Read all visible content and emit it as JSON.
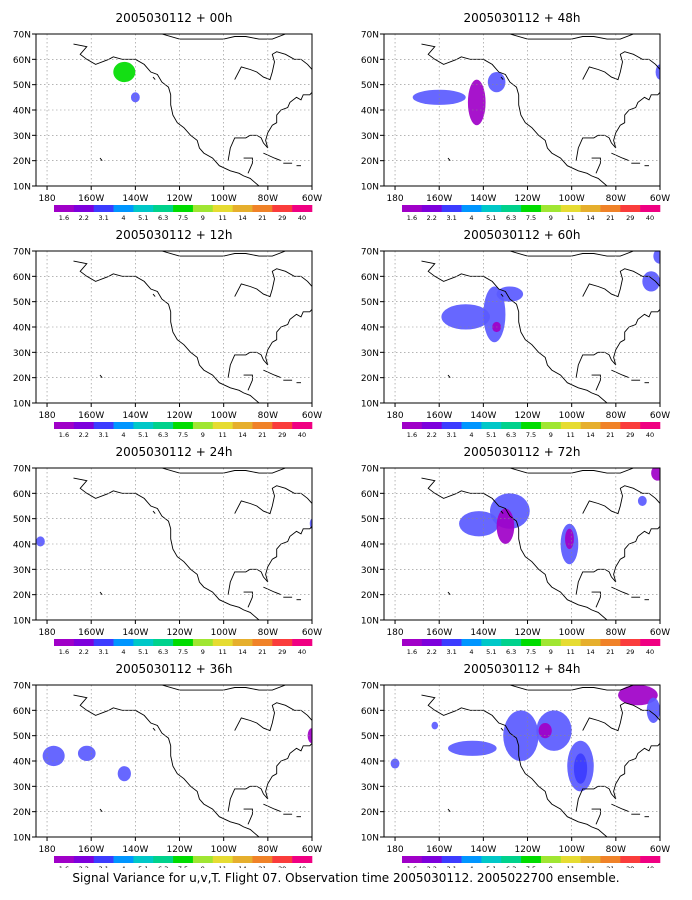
{
  "caption": "Signal Variance for u,v,T. Flight 07. Observation time 2005030112. 2005022700 ensemble.",
  "chart_data": [
    {
      "type": "heatmap",
      "title": "2005030112 + 00h",
      "y_ticks": [
        "10N",
        "20N",
        "30N",
        "40N",
        "50N",
        "60N",
        "70N"
      ],
      "x_ticks": [
        "180",
        "160W",
        "140W",
        "120W",
        "100W",
        "80W",
        "60W"
      ],
      "xlim": [
        -185,
        -60
      ],
      "ylim": [
        10,
        70
      ],
      "regions": [
        {
          "lon": -145,
          "lat": 55,
          "rx": 5,
          "ry": 4,
          "level": 9
        },
        {
          "lon": -140,
          "lat": 45,
          "rx": 2,
          "ry": 2,
          "level": 4
        }
      ]
    },
    {
      "type": "heatmap",
      "title": "2005030112 + 48h",
      "y_ticks": [
        "10N",
        "20N",
        "30N",
        "40N",
        "50N",
        "60N",
        "70N"
      ],
      "x_ticks": [
        "180",
        "160W",
        "140W",
        "120W",
        "100W",
        "80W",
        "60W"
      ],
      "xlim": [
        -185,
        -60
      ],
      "ylim": [
        10,
        70
      ],
      "regions": [
        {
          "lon": -160,
          "lat": 45,
          "rx": 12,
          "ry": 3,
          "level": 4
        },
        {
          "lon": -143,
          "lat": 43,
          "rx": 4,
          "ry": 9,
          "level": 5
        },
        {
          "lon": -134,
          "lat": 51,
          "rx": 4,
          "ry": 4,
          "level": 4
        },
        {
          "lon": -60,
          "lat": 55,
          "rx": 2,
          "ry": 3,
          "level": 4
        }
      ]
    },
    {
      "type": "heatmap",
      "title": "2005030112 + 12h",
      "y_ticks": [
        "10N",
        "20N",
        "30N",
        "40N",
        "50N",
        "60N",
        "70N"
      ],
      "x_ticks": [
        "180",
        "160W",
        "140W",
        "120W",
        "100W",
        "80W",
        "60W"
      ],
      "xlim": [
        -185,
        -60
      ],
      "ylim": [
        10,
        70
      ],
      "regions": []
    },
    {
      "type": "heatmap",
      "title": "2005030112 + 60h",
      "y_ticks": [
        "10N",
        "20N",
        "30N",
        "40N",
        "50N",
        "60N",
        "70N"
      ],
      "x_ticks": [
        "180",
        "160W",
        "140W",
        "120W",
        "100W",
        "80W",
        "60W"
      ],
      "xlim": [
        -185,
        -60
      ],
      "ylim": [
        10,
        70
      ],
      "regions": [
        {
          "lon": -148,
          "lat": 44,
          "rx": 11,
          "ry": 5,
          "level": 4
        },
        {
          "lon": -135,
          "lat": 45,
          "rx": 5,
          "ry": 11,
          "level": 4
        },
        {
          "lon": -134,
          "lat": 40,
          "rx": 2,
          "ry": 2,
          "level": 5
        },
        {
          "lon": -128,
          "lat": 53,
          "rx": 6,
          "ry": 3,
          "level": 4
        },
        {
          "lon": -64,
          "lat": 58,
          "rx": 4,
          "ry": 4,
          "level": 4
        },
        {
          "lon": -60,
          "lat": 68,
          "rx": 3,
          "ry": 3,
          "level": 4
        }
      ]
    },
    {
      "type": "heatmap",
      "title": "2005030112 + 24h",
      "y_ticks": [
        "10N",
        "20N",
        "30N",
        "40N",
        "50N",
        "60N",
        "70N"
      ],
      "x_ticks": [
        "180",
        "160W",
        "140W",
        "120W",
        "100W",
        "80W",
        "60W"
      ],
      "xlim": [
        -185,
        -60
      ],
      "ylim": [
        10,
        70
      ],
      "regions": [
        {
          "lon": -183,
          "lat": 41,
          "rx": 2,
          "ry": 2,
          "level": 4
        },
        {
          "lon": -60,
          "lat": 48,
          "rx": 1,
          "ry": 2,
          "level": 4
        }
      ]
    },
    {
      "type": "heatmap",
      "title": "2005030112 + 72h",
      "y_ticks": [
        "10N",
        "20N",
        "30N",
        "40N",
        "50N",
        "60N",
        "70N"
      ],
      "x_ticks": [
        "180",
        "160W",
        "140W",
        "120W",
        "100W",
        "80W",
        "60W"
      ],
      "xlim": [
        -185,
        -60
      ],
      "ylim": [
        10,
        70
      ],
      "regions": [
        {
          "lon": -142,
          "lat": 48,
          "rx": 9,
          "ry": 5,
          "level": 4
        },
        {
          "lon": -128,
          "lat": 53,
          "rx": 9,
          "ry": 7,
          "level": 4
        },
        {
          "lon": -130,
          "lat": 47,
          "rx": 4,
          "ry": 7,
          "level": 5
        },
        {
          "lon": -101,
          "lat": 40,
          "rx": 4,
          "ry": 8,
          "level": 4
        },
        {
          "lon": -101,
          "lat": 42,
          "rx": 2,
          "ry": 4,
          "level": 5
        },
        {
          "lon": -68,
          "lat": 57,
          "rx": 2,
          "ry": 2,
          "level": 4
        },
        {
          "lon": -61,
          "lat": 68,
          "rx": 3,
          "ry": 3,
          "level": 5
        }
      ]
    },
    {
      "type": "heatmap",
      "title": "2005030112 + 36h",
      "y_ticks": [
        "10N",
        "20N",
        "30N",
        "40N",
        "50N",
        "60N",
        "70N"
      ],
      "x_ticks": [
        "180",
        "160W",
        "140W",
        "120W",
        "100W",
        "80W",
        "60W"
      ],
      "xlim": [
        -185,
        -60
      ],
      "ylim": [
        10,
        70
      ],
      "regions": [
        {
          "lon": -177,
          "lat": 42,
          "rx": 5,
          "ry": 4,
          "level": 4
        },
        {
          "lon": -162,
          "lat": 43,
          "rx": 4,
          "ry": 3,
          "level": 4
        },
        {
          "lon": -145,
          "lat": 35,
          "rx": 3,
          "ry": 3,
          "level": 4
        },
        {
          "lon": -60,
          "lat": 50,
          "rx": 2,
          "ry": 3,
          "level": 5
        }
      ]
    },
    {
      "type": "heatmap",
      "title": "2005030112 + 84h",
      "y_ticks": [
        "10N",
        "20N",
        "30N",
        "40N",
        "50N",
        "60N",
        "70N"
      ],
      "x_ticks": [
        "180",
        "160W",
        "140W",
        "120W",
        "100W",
        "80W",
        "60W"
      ],
      "xlim": [
        -185,
        -60
      ],
      "ylim": [
        10,
        70
      ],
      "regions": [
        {
          "lon": -145,
          "lat": 45,
          "rx": 11,
          "ry": 3,
          "level": 4
        },
        {
          "lon": -123,
          "lat": 50,
          "rx": 8,
          "ry": 10,
          "level": 4
        },
        {
          "lon": -108,
          "lat": 52,
          "rx": 8,
          "ry": 8,
          "level": 4
        },
        {
          "lon": -96,
          "lat": 38,
          "rx": 6,
          "ry": 10,
          "level": 4
        },
        {
          "lon": -96,
          "lat": 37,
          "rx": 3,
          "ry": 6,
          "level": 6
        },
        {
          "lon": -112,
          "lat": 52,
          "rx": 3,
          "ry": 3,
          "level": 5
        },
        {
          "lon": -70,
          "lat": 66,
          "rx": 9,
          "ry": 4,
          "level": 5
        },
        {
          "lon": -63,
          "lat": 60,
          "rx": 3,
          "ry": 5,
          "level": 4
        },
        {
          "lon": -162,
          "lat": 54,
          "rx": 1.5,
          "ry": 1.5,
          "level": 4
        },
        {
          "lon": -180,
          "lat": 39,
          "rx": 2,
          "ry": 2,
          "level": 4
        }
      ]
    }
  ],
  "colorbar": {
    "labels": [
      "1.6",
      "2.2",
      "3.1",
      "4",
      "5.1",
      "6.3",
      "7.5",
      "9",
      "11",
      "14",
      "21",
      "29",
      "40"
    ],
    "colors": [
      "#a000c8",
      "#7d00dc",
      "#3c3cff",
      "#0096ff",
      "#00c8c8",
      "#00d28c",
      "#00dc00",
      "#a0e632",
      "#e6dc32",
      "#e6af2d",
      "#f08228",
      "#fa3c3c",
      "#f00082"
    ]
  },
  "fill_colors": [
    "#a000c8",
    "#9600e6",
    "#8200ff",
    "#3c3cff",
    "#5a5aff",
    "#a000c8",
    "#3c3cff",
    "#0096ff",
    "#00c8c8",
    "#00dc00"
  ]
}
